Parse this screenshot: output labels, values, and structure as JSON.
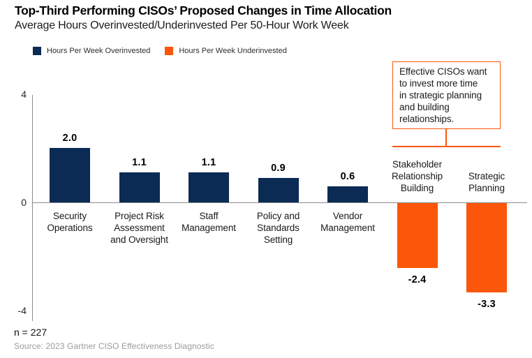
{
  "header": {
    "title": "Top-Third Performing CISOs’ Proposed Changes in Time Allocation",
    "subtitle": "Average Hours Overinvested/Underinvested Per 50-Hour Work Week"
  },
  "legend": {
    "items": [
      {
        "label": "Hours Per Week Overinvested",
        "color": "#0b2b55"
      },
      {
        "label": "Hours Per Week Underinvested",
        "color": "#fb560a"
      }
    ]
  },
  "annotation": {
    "text": "Effective CISOs want to invest more time in strategic planning and building relationships.",
    "text_wrapped": "Effective CISOs want\nto invest more time\nin strategic planning\nand building\nrelationships.",
    "border_color": "#fb560a"
  },
  "chart_data": {
    "type": "bar",
    "title": "Top-Third Performing CISOs’ Proposed Changes in Time Allocation",
    "subtitle": "Average Hours Overinvested/Underinvested Per 50-Hour Work Week",
    "categories": [
      "Security Operations",
      "Project Risk Assessment and Oversight",
      "Staff Management",
      "Policy and Standards Setting",
      "Vendor Management",
      "Stakeholder Relationship Building",
      "Strategic Planning"
    ],
    "category_lines": [
      [
        "Security",
        "Operations"
      ],
      [
        "Project Risk",
        "Assessment",
        "and Oversight"
      ],
      [
        "Staff",
        "Management"
      ],
      [
        "Policy and",
        "Standards",
        "Setting"
      ],
      [
        "Vendor",
        "Management"
      ],
      [
        "Stakeholder",
        "Relationship",
        "Building"
      ],
      [
        "Strategic",
        "Planning"
      ]
    ],
    "values": [
      2.0,
      1.1,
      1.1,
      0.9,
      0.6,
      -2.4,
      -3.3
    ],
    "value_labels": [
      "2.0",
      "1.1",
      "1.1",
      "0.9",
      "0.6",
      "-2.4",
      "-3.3"
    ],
    "series": [
      {
        "name": "Hours Per Week Overinvested",
        "color": "#0b2b55",
        "applies_to": "positive values"
      },
      {
        "name": "Hours Per Week Underinvested",
        "color": "#fb560a",
        "applies_to": "negative values"
      }
    ],
    "colors": {
      "positive": "#0b2b55",
      "negative": "#fb560a"
    },
    "ylim": [
      -4,
      4
    ],
    "grid": false,
    "legend_position": "top-left",
    "xlabel": "",
    "ylabel": ""
  },
  "axis": {
    "ticks": [
      {
        "label": "4",
        "value": 4
      },
      {
        "label": "0",
        "value": 0
      },
      {
        "label": "-4",
        "value": -4
      }
    ],
    "line_color": "#8c8c8c"
  },
  "footer": {
    "sample": "n = 227",
    "source": "Source: 2023 Gartner CISO Effectiveness Diagnostic"
  }
}
